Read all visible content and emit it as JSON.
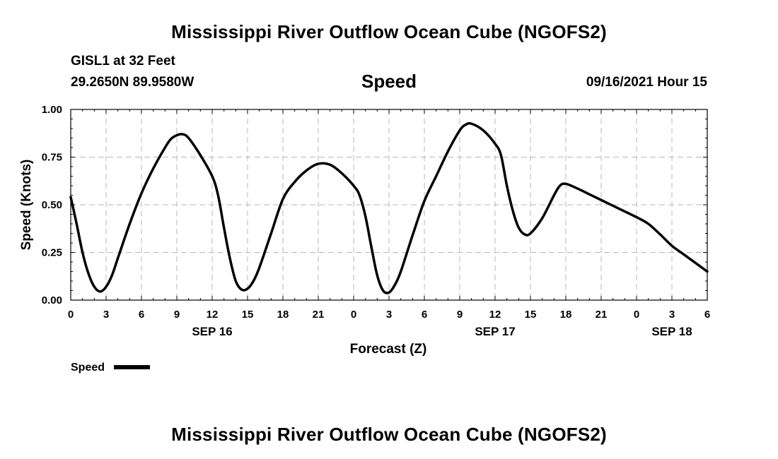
{
  "chart_data": {
    "type": "line",
    "title": "Mississippi River Outflow Ocean Cube (NGOFS2)",
    "footer_title": "Mississippi River Outflow Ocean Cube (NGOFS2)",
    "station": "GISL1 at 32 Feet",
    "location": "29.2650N  89.9580W",
    "parameter": "Speed",
    "datetime": "09/16/2021 Hour 15",
    "xlabel": "Forecast (Z)",
    "ylabel": "Speed (Knots)",
    "xlim": [
      0,
      54
    ],
    "ylim": [
      0,
      1.0
    ],
    "grid": true,
    "x_ticks": [
      0,
      3,
      6,
      9,
      12,
      15,
      18,
      21,
      24,
      27,
      30,
      33,
      36,
      39,
      42,
      45,
      48,
      51,
      54
    ],
    "x_tick_labels": [
      "0",
      "3",
      "6",
      "9",
      "12",
      "15",
      "18",
      "21",
      "0",
      "3",
      "6",
      "9",
      "12",
      "15",
      "18",
      "21",
      "0",
      "3",
      "6"
    ],
    "y_ticks": [
      0,
      0.25,
      0.5,
      0.75,
      1.0
    ],
    "y_tick_labels": [
      "0.00",
      "0.25",
      "0.50",
      "0.75",
      "1.00"
    ],
    "date_labels": [
      {
        "x": 12,
        "label": "SEP 16"
      },
      {
        "x": 36,
        "label": "SEP 17"
      },
      {
        "x": 51,
        "label": "SEP 18"
      }
    ],
    "legend": {
      "label": "Speed",
      "placement": "bottom-left"
    },
    "series": [
      {
        "name": "Speed",
        "color": "#000000",
        "x": [
          0,
          0.5,
          1,
          1.5,
          2,
          2.5,
          3,
          3.5,
          4,
          5,
          6,
          7,
          8,
          8.5,
          9,
          9.5,
          10,
          11,
          12,
          12.5,
          13,
          13.5,
          14,
          14.5,
          15,
          15.5,
          16,
          17,
          18,
          19,
          20,
          21,
          22,
          23,
          24,
          24.5,
          25,
          25.5,
          26,
          26.5,
          27,
          27.5,
          28,
          29,
          30,
          31,
          32,
          33,
          33.5,
          34,
          35,
          36,
          36.5,
          37,
          37.5,
          38,
          38.5,
          39,
          40,
          41,
          41.5,
          42,
          43,
          44,
          45,
          46,
          47,
          48,
          49,
          50,
          51,
          52,
          53,
          54
        ],
        "values": [
          0.54,
          0.4,
          0.25,
          0.14,
          0.07,
          0.045,
          0.07,
          0.13,
          0.22,
          0.4,
          0.56,
          0.69,
          0.8,
          0.845,
          0.865,
          0.87,
          0.85,
          0.76,
          0.65,
          0.55,
          0.38,
          0.22,
          0.1,
          0.055,
          0.06,
          0.1,
          0.17,
          0.35,
          0.53,
          0.62,
          0.68,
          0.715,
          0.71,
          0.665,
          0.6,
          0.55,
          0.44,
          0.28,
          0.13,
          0.05,
          0.04,
          0.08,
          0.15,
          0.34,
          0.52,
          0.65,
          0.78,
          0.89,
          0.92,
          0.925,
          0.89,
          0.82,
          0.76,
          0.6,
          0.47,
          0.38,
          0.345,
          0.35,
          0.43,
          0.55,
          0.6,
          0.61,
          0.585,
          0.555,
          0.525,
          0.495,
          0.465,
          0.435,
          0.4,
          0.345,
          0.285,
          0.24,
          0.195,
          0.15
        ]
      }
    ]
  }
}
